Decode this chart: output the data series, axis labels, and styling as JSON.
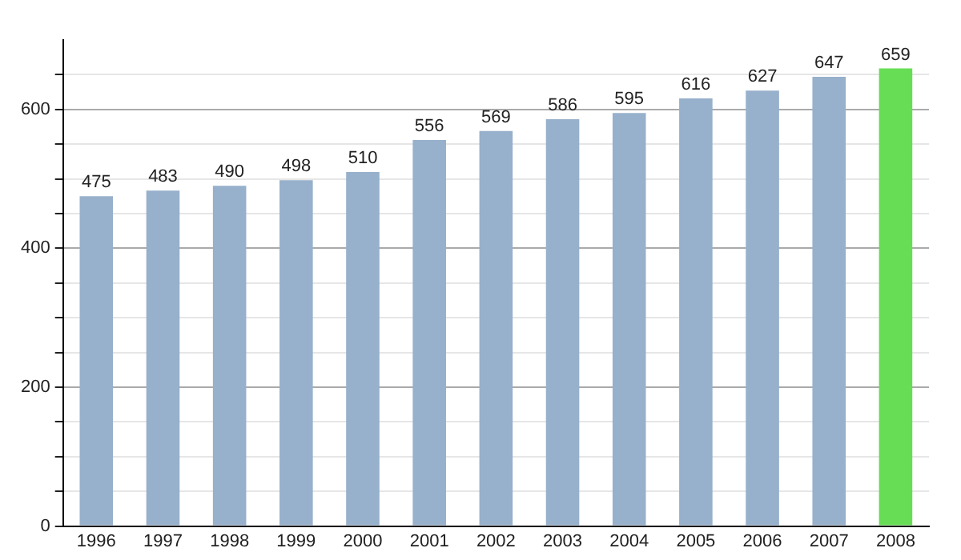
{
  "chart_data": {
    "type": "bar",
    "categories": [
      "1996",
      "1997",
      "1998",
      "1999",
      "2000",
      "2001",
      "2002",
      "2003",
      "2004",
      "2005",
      "2006",
      "2007",
      "2008"
    ],
    "values": [
      475,
      483,
      490,
      498,
      510,
      556,
      569,
      586,
      595,
      616,
      627,
      647,
      659
    ],
    "colors": [
      "#97b0cb",
      "#97b0cb",
      "#97b0cb",
      "#97b0cb",
      "#97b0cb",
      "#97b0cb",
      "#97b0cb",
      "#97b0cb",
      "#97b0cb",
      "#97b0cb",
      "#97b0cb",
      "#97b0cb",
      "#66dd55"
    ],
    "ylim": [
      0,
      700
    ],
    "yticks": [
      0,
      {
        "value": 50,
        "label": null
      },
      {
        "value": 100,
        "label": null
      },
      {
        "value": 150,
        "label": null
      },
      200,
      {
        "value": 250,
        "label": null
      },
      {
        "value": 300,
        "label": null
      },
      {
        "value": 350,
        "label": null
      },
      400,
      {
        "value": 450,
        "label": null
      },
      {
        "value": 500,
        "label": null
      },
      {
        "value": 550,
        "label": null
      },
      600,
      {
        "value": 650,
        "label": null
      }
    ],
    "grid": "y",
    "data_labels": true,
    "legend": false
  }
}
